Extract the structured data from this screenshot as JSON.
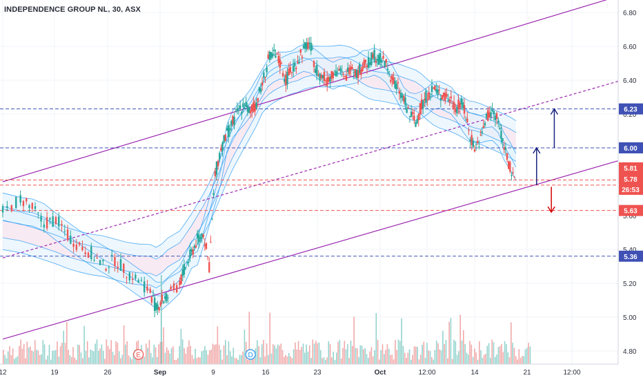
{
  "header": {
    "title": "INDEPENDENCE GROUP NL, 30, ASX"
  },
  "colors": {
    "up": "#26a69a",
    "down": "#ef5350",
    "channel": "#9c27b0",
    "blue_level": "#3f51b5",
    "red_level": "#ef5350",
    "band_blue": "#2196f3",
    "band_red": "#f48fb1"
  },
  "chart_data": {
    "type": "candlestick",
    "symbol": "INDEPENDENCE GROUP NL",
    "interval": "30",
    "exchange": "ASX",
    "ylim": [
      4.72,
      6.86
    ],
    "y_ticks": [
      4.8,
      5.0,
      5.2,
      5.4,
      5.6,
      5.8,
      6.0,
      6.2,
      6.4,
      6.6,
      6.8
    ],
    "x_ticks": [
      "12",
      "19",
      "26",
      "Sep",
      "9",
      "16",
      "23",
      "Oct",
      "12:00",
      "14",
      "21",
      "12:00"
    ],
    "price_levels": [
      {
        "label": "6.23",
        "value": 6.23,
        "color": "#3f51b5"
      },
      {
        "label": "6.00",
        "value": 6.0,
        "color": "#3f51b5"
      },
      {
        "label": "5.81",
        "value": 5.81,
        "color": "#ef5350"
      },
      {
        "label": "5.78",
        "value": 5.78,
        "color": "#ef5350"
      },
      {
        "label": "26:53",
        "value": 5.74,
        "color": "#ef5350"
      },
      {
        "label": "5.63",
        "value": 5.63,
        "color": "#ef5350"
      },
      {
        "label": "5.36",
        "value": 5.36,
        "color": "#3f51b5"
      }
    ],
    "price_series": [
      [
        0,
        5.62
      ],
      [
        3,
        5.7
      ],
      [
        5,
        5.64
      ],
      [
        7,
        5.55
      ],
      [
        9,
        5.58
      ],
      [
        11,
        5.48
      ],
      [
        13,
        5.42
      ],
      [
        15,
        5.38
      ],
      [
        17,
        5.3
      ],
      [
        19,
        5.34
      ],
      [
        21,
        5.27
      ],
      [
        23,
        5.22
      ],
      [
        25,
        5.15
      ],
      [
        26,
        5.05
      ],
      [
        27,
        5.1
      ],
      [
        28,
        5.12
      ],
      [
        30,
        5.2
      ],
      [
        31,
        5.3
      ],
      [
        32,
        5.38
      ],
      [
        33,
        5.46
      ],
      [
        34,
        5.5
      ],
      [
        35,
        5.3
      ],
      [
        36,
        5.84
      ],
      [
        37,
        6.0
      ],
      [
        38,
        6.08
      ],
      [
        39,
        6.15
      ],
      [
        40,
        6.22
      ],
      [
        41,
        6.26
      ],
      [
        42,
        6.2
      ],
      [
        43,
        6.27
      ],
      [
        44,
        6.38
      ],
      [
        45,
        6.52
      ],
      [
        46,
        6.55
      ],
      [
        47,
        6.5
      ],
      [
        48,
        6.4
      ],
      [
        49,
        6.46
      ],
      [
        50,
        6.52
      ],
      [
        51,
        6.58
      ],
      [
        52,
        6.62
      ],
      [
        53,
        6.48
      ],
      [
        54,
        6.42
      ],
      [
        55,
        6.4
      ],
      [
        56,
        6.45
      ],
      [
        57,
        6.46
      ],
      [
        58,
        6.4
      ],
      [
        59,
        6.5
      ],
      [
        60,
        6.44
      ],
      [
        61,
        6.48
      ],
      [
        62,
        6.5
      ],
      [
        63,
        6.55
      ],
      [
        64,
        6.52
      ],
      [
        65,
        6.5
      ],
      [
        66,
        6.4
      ],
      [
        67,
        6.35
      ],
      [
        68,
        6.28
      ],
      [
        69,
        6.2
      ],
      [
        70,
        6.15
      ],
      [
        71,
        6.25
      ],
      [
        72,
        6.32
      ],
      [
        73,
        6.35
      ],
      [
        74,
        6.32
      ],
      [
        75,
        6.3
      ],
      [
        76,
        6.28
      ],
      [
        77,
        6.24
      ],
      [
        78,
        6.26
      ],
      [
        79,
        6.1
      ],
      [
        80,
        6.0
      ],
      [
        81,
        6.05
      ],
      [
        82,
        6.18
      ],
      [
        83,
        6.22
      ],
      [
        84,
        6.15
      ],
      [
        85,
        6.02
      ],
      [
        86,
        5.88
      ],
      [
        87,
        5.76
      ]
    ],
    "x_domain": [
      0,
      100
    ],
    "channel": {
      "upper": [
        [
          0,
          5.8
        ],
        [
          100,
          6.85
        ]
      ],
      "middle": [
        [
          0,
          5.35
        ],
        [
          100,
          6.35
        ]
      ],
      "lower": [
        [
          0,
          4.87
        ],
        [
          100,
          5.88
        ]
      ]
    },
    "volume_note": "volume histogram at bottom",
    "markers": [
      {
        "label": "E",
        "x": 23,
        "color": "#ef5350"
      },
      {
        "label": "D",
        "x": 42,
        "color": "#2196f3"
      }
    ],
    "arrows": [
      {
        "x": 90.5,
        "from": 5.78,
        "to": 6.0,
        "direction": "up",
        "color": "#1a237e"
      },
      {
        "x": 93.5,
        "from": 6.0,
        "to": 6.23,
        "direction": "up",
        "color": "#1a237e"
      },
      {
        "x": 93.0,
        "from": 5.77,
        "to": 5.62,
        "direction": "down",
        "color": "#d50000"
      }
    ]
  }
}
